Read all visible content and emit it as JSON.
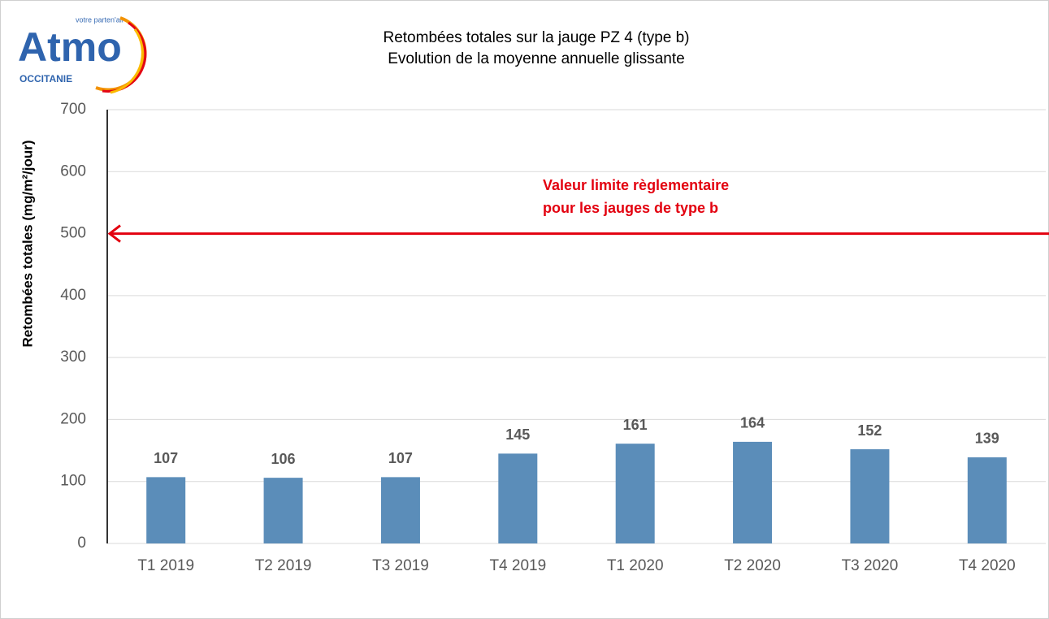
{
  "logo": {
    "tagline": "votre parten'air",
    "name": "Atmo",
    "region": "OCCITANIE"
  },
  "chart_data": {
    "type": "bar",
    "title": "Retombées totales sur la jauge PZ 4 (type b)",
    "subtitle": "Evolution de la moyenne annuelle glissante",
    "y_label": "Retombées totales (mg/m²/jour)",
    "categories": [
      "T1 2019",
      "T2 2019",
      "T3 2019",
      "T4 2019",
      "T1 2020",
      "T2 2020",
      "T3 2020",
      "T4 2020"
    ],
    "values": [
      107,
      106,
      107,
      145,
      161,
      164,
      152,
      139
    ],
    "color": "#5b8db9",
    "ylim": [
      0,
      700
    ],
    "yticks": [
      0,
      100,
      200,
      300,
      400,
      500,
      600,
      700
    ],
    "grid": true,
    "reference_line": {
      "value": 500,
      "color": "#e3000f",
      "label": [
        "Valeur limite règlementaire",
        "pour les jauges de type b"
      ]
    }
  }
}
